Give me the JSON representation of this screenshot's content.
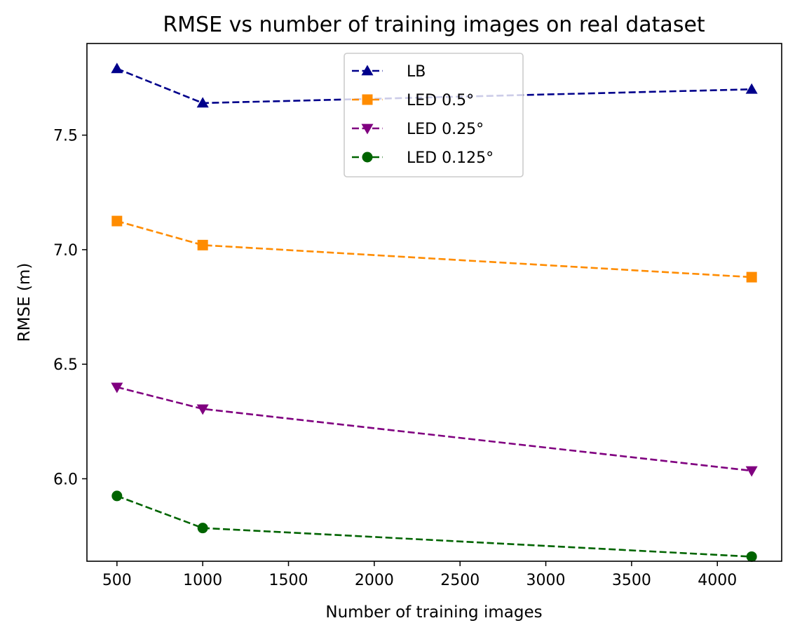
{
  "chart_data": {
    "type": "line",
    "title": "RMSE vs number of training images on real dataset",
    "xlabel": "Number of training images",
    "ylabel": "RMSE (m)",
    "x": [
      500,
      1000,
      4200
    ],
    "xlim": [
      325,
      4375
    ],
    "ylim": [
      5.64,
      7.9
    ],
    "xticks": [
      500,
      1000,
      1500,
      2000,
      2500,
      3000,
      3500,
      4000
    ],
    "yticks": [
      6.0,
      6.5,
      7.0,
      7.5
    ],
    "grid": false,
    "legend_position": "top-center",
    "series": [
      {
        "name": "LB",
        "values": [
          7.79,
          7.64,
          7.7
        ],
        "color": "#00008b",
        "marker": "triangle-up",
        "linestyle": "dashed"
      },
      {
        "name": "LED 0.5°",
        "values": [
          7.125,
          7.02,
          6.88
        ],
        "color": "#ff8c00",
        "marker": "square",
        "linestyle": "dashed"
      },
      {
        "name": "LED 0.25°",
        "values": [
          6.4,
          6.305,
          6.035
        ],
        "color": "#800080",
        "marker": "triangle-down",
        "linestyle": "dashed"
      },
      {
        "name": "LED 0.125°",
        "values": [
          5.925,
          5.785,
          5.66
        ],
        "color": "#006400",
        "marker": "circle",
        "linestyle": "dashed"
      }
    ]
  }
}
